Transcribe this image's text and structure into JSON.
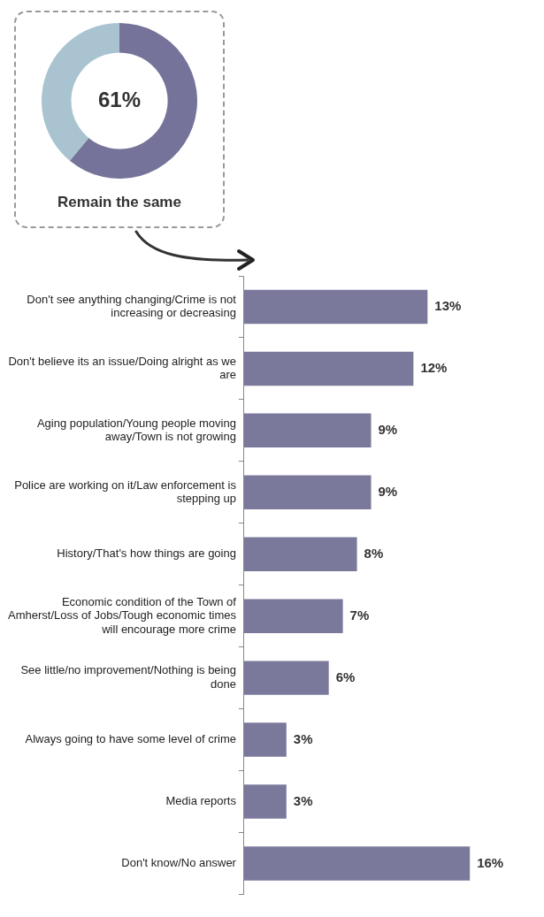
{
  "chart_data": [
    {
      "type": "donut",
      "categories": [
        "Remain the same",
        null
      ],
      "values": [
        61,
        39
      ],
      "colors": [
        "#75739a",
        "#a9c4d0"
      ],
      "value_labels": [
        "61%",
        null
      ]
    },
    {
      "type": "bar",
      "orientation": "horizontal",
      "categories": [
        "Don't see anything changing/Crime is not increasing or decreasing",
        "Don't believe its an issue/Doing alright as we are",
        "Aging population/Young people moving away/Town is not growing",
        "Police are working on it/Law enforcement is stepping up",
        "History/That's how things are going",
        "Economic condition of the Town of Amherst/Loss of Jobs/Tough economic times will encourage more crime",
        "See little/no improvement/Nothing is being done",
        "Always going to have some level of crime",
        "Media reports",
        "Don't know/No answer"
      ],
      "values": [
        13,
        12,
        9,
        9,
        8,
        7,
        6,
        3,
        3,
        16
      ],
      "color": "#7a799c",
      "value_labels": [
        "13%",
        "12%",
        "9%",
        "9%",
        "8%",
        "7%",
        "6%",
        "3%",
        "3%",
        "16%"
      ]
    }
  ]
}
